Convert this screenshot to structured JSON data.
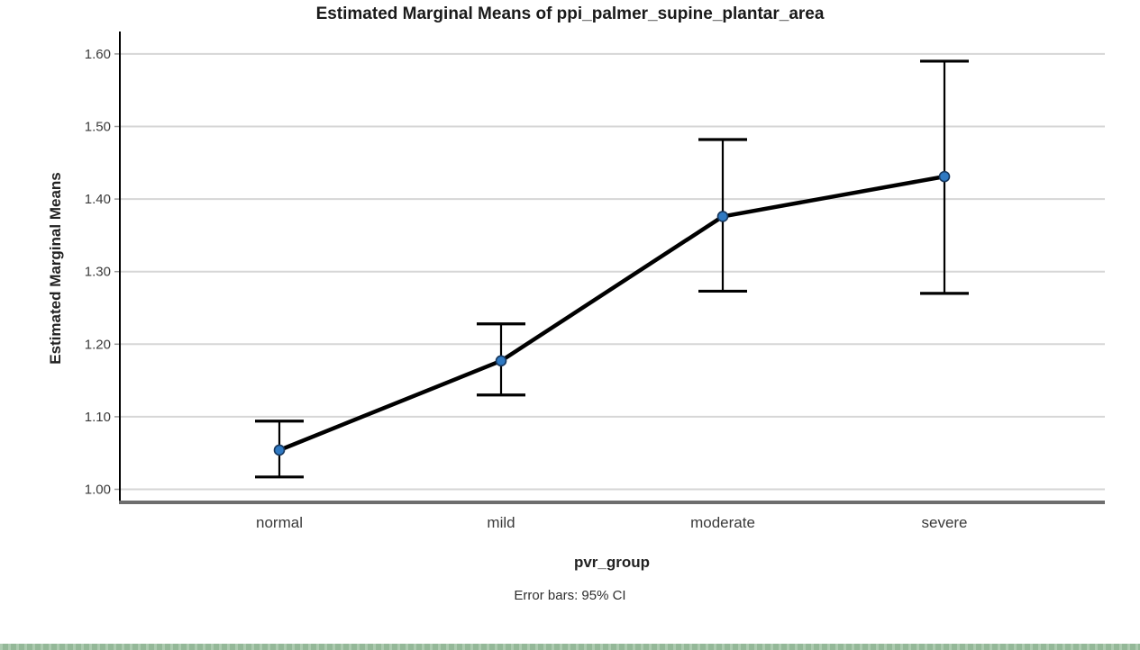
{
  "page": {
    "background": "#ffffff",
    "bottom_bar_color": "#9abf9e"
  },
  "chart_data": {
    "type": "line",
    "title": "Estimated Marginal Means of ppi_palmer_supine_plantar_area",
    "xlabel": "pvr_group",
    "ylabel": "Estimated Marginal Means",
    "footnote": "Error bars: 95% CI",
    "categories": [
      "normal",
      "mild",
      "moderate",
      "severe"
    ],
    "series": [
      {
        "name": "Estimated Marginal Means",
        "values": [
          1.054,
          1.177,
          1.376,
          1.431
        ],
        "ci_low": [
          1.017,
          1.13,
          1.273,
          1.27
        ],
        "ci_high": [
          1.094,
          1.228,
          1.482,
          1.59
        ]
      }
    ],
    "error_bars": "95% CI",
    "ylim": [
      1.0,
      1.6
    ],
    "yticks": [
      1.0,
      1.1,
      1.2,
      1.3,
      1.4,
      1.5,
      1.6
    ],
    "ytick_labels": [
      "1.00",
      "1.10",
      "1.20",
      "1.30",
      "1.40",
      "1.50",
      "1.60"
    ],
    "grid": "horizontal",
    "legend": "none",
    "colors": {
      "line": "#000000",
      "marker_fill": "#2f79c2",
      "marker_stroke": "#16365c",
      "gridline": "#d6d6d6",
      "axis": "#000000",
      "frame_bottom": "#6e6e6e",
      "tick_text": "#3a3a3a"
    }
  }
}
